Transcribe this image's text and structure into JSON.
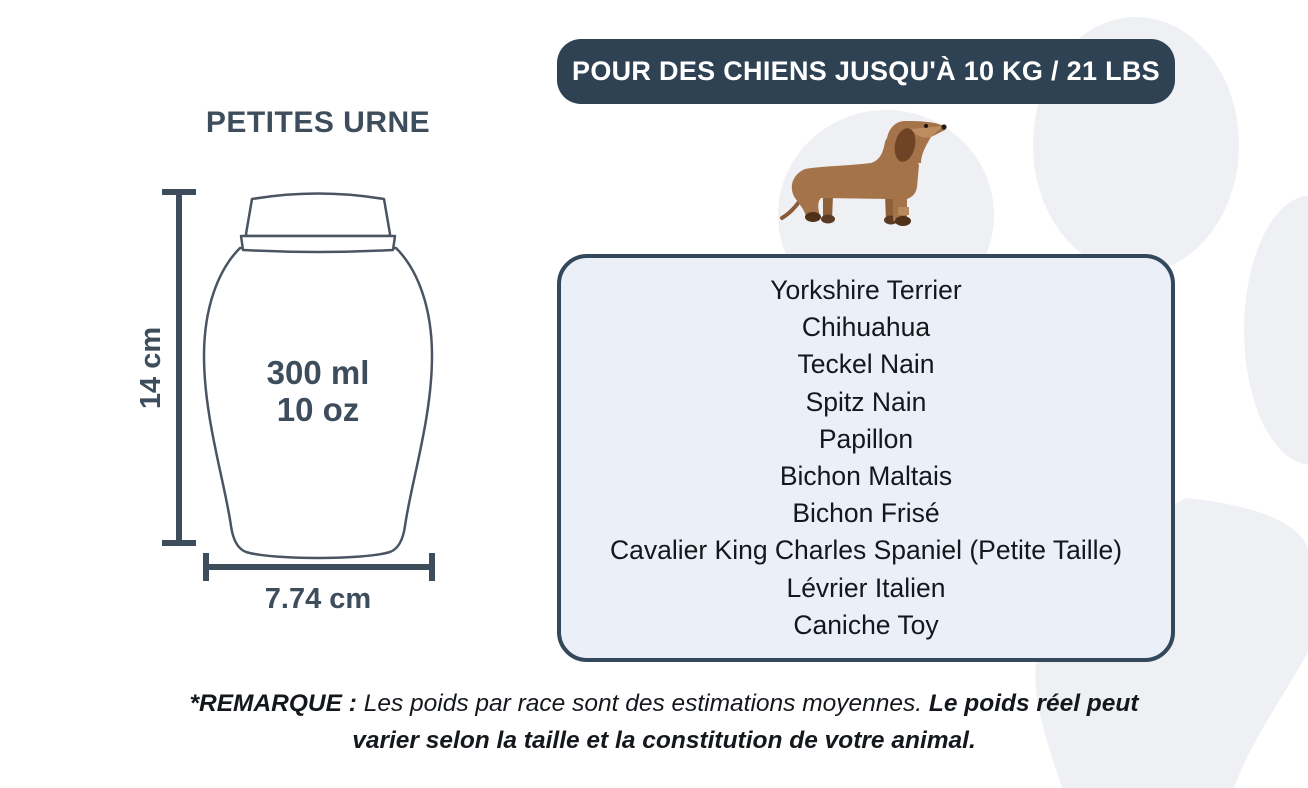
{
  "colors": {
    "slate": "#3d4d5c",
    "stroke": "#4a5561",
    "badge-bg": "#2e4254",
    "box-fill": "#eaeff8",
    "box-border": "#33485a",
    "watermark": "#eef0f3",
    "text-dark": "#14181c",
    "white": "#ffffff"
  },
  "badge": {
    "label": "POUR DES CHIENS JUSQU'À 10 KG / 21 LBS"
  },
  "urn": {
    "title": "PETITES URNE",
    "volume_ml": "300 ml",
    "volume_oz": "10 oz",
    "height_label": "14 cm",
    "width_label": "7.74 cm"
  },
  "breeds": {
    "items": [
      "Yorkshire Terrier",
      "Chihuahua",
      "Teckel Nain",
      "Spitz Nain",
      "Papillon",
      "Bichon Maltais",
      "Bichon Frisé",
      "Cavalier King Charles Spaniel (Petite Taille)",
      "Lévrier Italien",
      "Caniche Toy"
    ]
  },
  "note": {
    "prefix": "*REMARQUE : ",
    "body": "Les poids par race sont des estimations moyennes. ",
    "bold_line1": "Le poids réel peut",
    "bold_line2": "varier selon la taille et la constitution de votre animal."
  },
  "icons": {
    "dog": "dachshund-illustration",
    "background": "paw-print-watermark"
  }
}
